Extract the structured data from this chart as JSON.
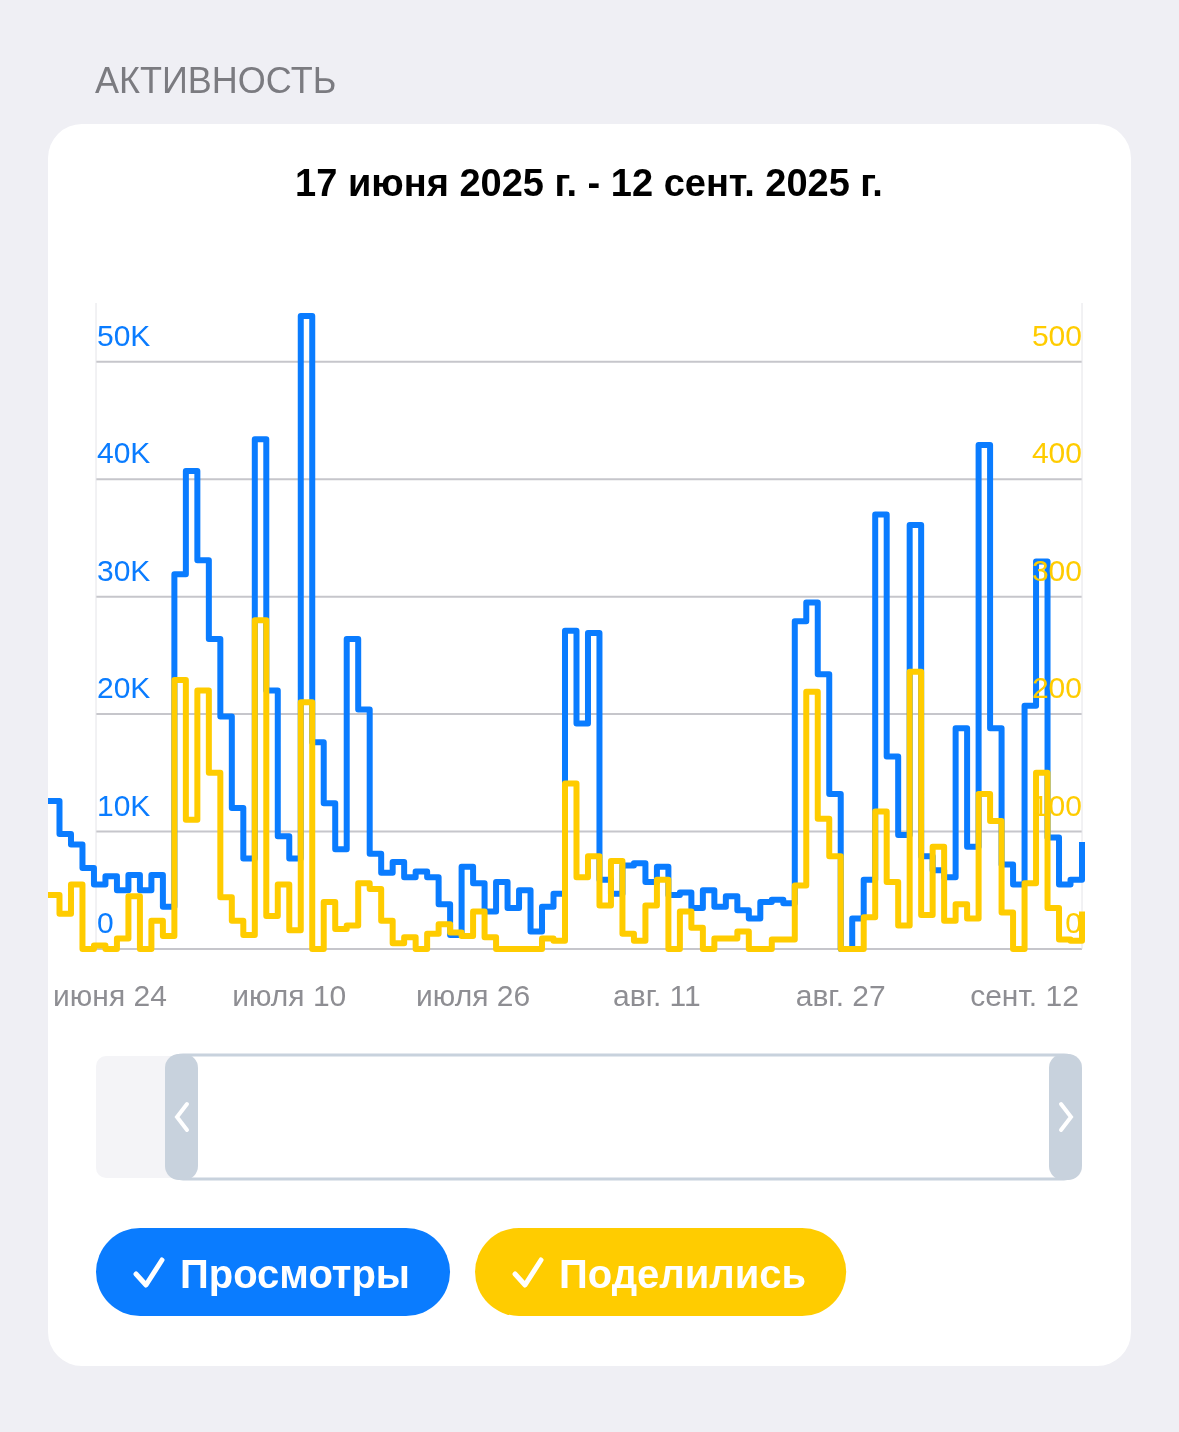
{
  "chart_data": {
    "type": "step",
    "title": "АКТИВНОСТЬ",
    "subtitle": "17 июня 2025 г. - 12 сент. 2025 г.",
    "x": [
      "2025-06-19",
      "2025-06-20",
      "2025-06-21",
      "2025-06-22",
      "2025-06-23",
      "2025-06-24",
      "2025-06-25",
      "2025-06-26",
      "2025-06-27",
      "2025-06-28",
      "2025-06-29",
      "2025-06-30",
      "2025-07-01",
      "2025-07-02",
      "2025-07-03",
      "2025-07-04",
      "2025-07-05",
      "2025-07-06",
      "2025-07-07",
      "2025-07-08",
      "2025-07-09",
      "2025-07-10",
      "2025-07-11",
      "2025-07-12",
      "2025-07-13",
      "2025-07-14",
      "2025-07-15",
      "2025-07-16",
      "2025-07-17",
      "2025-07-18",
      "2025-07-19",
      "2025-07-20",
      "2025-07-21",
      "2025-07-22",
      "2025-07-23",
      "2025-07-24",
      "2025-07-25",
      "2025-07-26",
      "2025-07-27",
      "2025-07-28",
      "2025-07-29",
      "2025-07-30",
      "2025-07-31",
      "2025-08-01",
      "2025-08-02",
      "2025-08-03",
      "2025-08-04",
      "2025-08-05",
      "2025-08-06",
      "2025-08-07",
      "2025-08-08",
      "2025-08-09",
      "2025-08-10",
      "2025-08-11",
      "2025-08-12",
      "2025-08-13",
      "2025-08-14",
      "2025-08-15",
      "2025-08-16",
      "2025-08-17",
      "2025-08-18",
      "2025-08-19",
      "2025-08-20",
      "2025-08-21",
      "2025-08-22",
      "2025-08-23",
      "2025-08-24",
      "2025-08-25",
      "2025-08-26",
      "2025-08-27",
      "2025-08-28",
      "2025-08-29",
      "2025-08-30",
      "2025-08-31",
      "2025-09-01",
      "2025-09-02",
      "2025-09-03",
      "2025-09-04",
      "2025-09-05",
      "2025-09-06",
      "2025-09-07",
      "2025-09-08",
      "2025-09-09",
      "2025-09-10",
      "2025-09-11",
      "2025-09-12",
      "2025-09-13",
      "2025-09-14",
      "2025-09-15",
      "2025-09-16",
      "2025-09-17"
    ],
    "series": [
      {
        "name": "Просмотры",
        "color": "#0a7cff",
        "values": [
          12600,
          9800,
          8900,
          6900,
          5500,
          6200,
          5000,
          6300,
          5000,
          6300,
          3600,
          31900,
          40700,
          33100,
          26400,
          19800,
          12000,
          7700,
          43400,
          22000,
          9600,
          7700,
          53900,
          17600,
          12400,
          8500,
          26400,
          20400,
          8100,
          6500,
          7400,
          6100,
          6600,
          6100,
          3800,
          1200,
          7000,
          5600,
          3200,
          5700,
          3500,
          5000,
          1500,
          3600,
          4700,
          27100,
          19200,
          26900,
          5900,
          4700,
          7100,
          7300,
          5700,
          7000,
          4600,
          4800,
          3500,
          5000,
          3600,
          4500,
          3300,
          2600,
          4000,
          4200,
          3900,
          27900,
          29500,
          23400,
          13200,
          0,
          2600,
          5900,
          37000,
          16400,
          9700,
          36100,
          7900,
          6700,
          6100,
          18800,
          8700,
          42900,
          18800,
          7200,
          5500,
          20700,
          33000,
          9500,
          5500,
          5900,
          9100
        ]
      },
      {
        "name": "Поделились",
        "color": "#ffcc00",
        "axis": "y2",
        "values": [
          46,
          30,
          55,
          0,
          3,
          0,
          9,
          45,
          0,
          24,
          11,
          229,
          110,
          220,
          150,
          44,
          24,
          12,
          280,
          28,
          55,
          16,
          210,
          0,
          40,
          17,
          20,
          56,
          51,
          24,
          5,
          10,
          0,
          13,
          21,
          14,
          11,
          32,
          10,
          0,
          0,
          0,
          0,
          9,
          7,
          141,
          61,
          79,
          37,
          75,
          13,
          7,
          37,
          59,
          0,
          32,
          18,
          0,
          9,
          9,
          15,
          0,
          0,
          8,
          8,
          54,
          219,
          111,
          79,
          0,
          0,
          27,
          117,
          57,
          20,
          236,
          29,
          87,
          24,
          38,
          26,
          132,
          109,
          31,
          0,
          56,
          150,
          35,
          8,
          7,
          32
        ]
      }
    ],
    "xlim": [
      "2025-06-19",
      "2025-09-17"
    ],
    "xticks": [
      {
        "value": "2025-06-24",
        "label": "июня 24"
      },
      {
        "value": "2025-07-10",
        "label": "июля 10"
      },
      {
        "value": "2025-07-26",
        "label": "июля 26"
      },
      {
        "value": "2025-08-11",
        "label": "авг. 11"
      },
      {
        "value": "2025-08-27",
        "label": "авг. 27"
      },
      {
        "value": "2025-09-12",
        "label": "сент. 12"
      }
    ],
    "ylim": [
      0,
      55000
    ],
    "yticks": [
      0,
      {
        "value": 10000,
        "label": "10K"
      },
      {
        "value": 20000,
        "label": "20K"
      },
      {
        "value": 30000,
        "label": "30K"
      },
      {
        "value": 40000,
        "label": "40K"
      },
      {
        "value": 50000,
        "label": "50K"
      }
    ],
    "y2lim": [
      0,
      550
    ],
    "y2ticks": [
      0,
      100,
      200,
      300,
      400,
      500
    ],
    "grid": "y",
    "legend": "bottom"
  }
}
